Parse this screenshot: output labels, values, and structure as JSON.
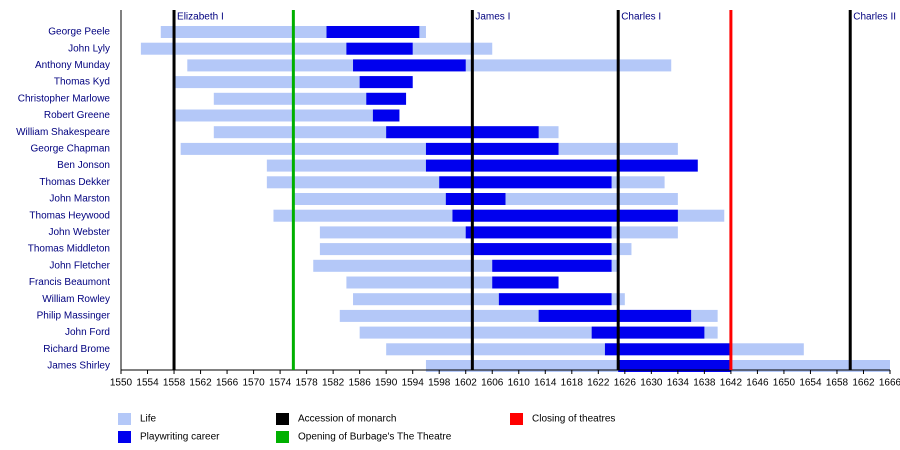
{
  "chart_data": {
    "type": "timeline",
    "categories": [
      "George Peele",
      "John Lyly",
      "Anthony Munday",
      "Thomas Kyd",
      "Christopher Marlowe",
      "Robert Greene",
      "William Shakespeare",
      "George Chapman",
      "Ben Jonson",
      "Thomas Dekker",
      "John Marston",
      "Thomas Heywood",
      "John Webster",
      "Thomas Middleton",
      "John Fletcher",
      "Francis Beaumont",
      "William Rowley",
      "Philip Massinger",
      "John Ford",
      "Richard Brome",
      "James Shirley"
    ],
    "series": [
      {
        "name": "Life",
        "color": "#b4c8f8",
        "values": [
          [
            1556,
            1596
          ],
          [
            1553,
            1606
          ],
          [
            1560,
            1633
          ],
          [
            1558,
            1594
          ],
          [
            1564,
            1593
          ],
          [
            1558,
            1592
          ],
          [
            1564,
            1616
          ],
          [
            1559,
            1634
          ],
          [
            1572,
            1637
          ],
          [
            1572,
            1632
          ],
          [
            1576,
            1634
          ],
          [
            1573,
            1641
          ],
          [
            1580,
            1634
          ],
          [
            1580,
            1627
          ],
          [
            1579,
            1625
          ],
          [
            1584,
            1616
          ],
          [
            1585,
            1626
          ],
          [
            1583,
            1640
          ],
          [
            1586,
            1640
          ],
          [
            1590,
            1653
          ],
          [
            1596,
            1666
          ]
        ]
      },
      {
        "name": "Playwriting career",
        "color": "#0000ee",
        "values": [
          [
            1581,
            1595
          ],
          [
            1584,
            1594
          ],
          [
            1585,
            1602
          ],
          [
            1586,
            1594
          ],
          [
            1587,
            1593
          ],
          [
            1588,
            1592
          ],
          [
            1590,
            1613
          ],
          [
            1596,
            1616
          ],
          [
            1596,
            1637
          ],
          [
            1598,
            1624
          ],
          [
            1599,
            1608
          ],
          [
            1600,
            1634
          ],
          [
            1602,
            1624
          ],
          [
            1603,
            1624
          ],
          [
            1606,
            1624
          ],
          [
            1606,
            1616
          ],
          [
            1607,
            1624
          ],
          [
            1613,
            1636
          ],
          [
            1621,
            1638
          ],
          [
            1623,
            1642
          ],
          [
            1625,
            1642
          ]
        ]
      }
    ],
    "markers": [
      {
        "name": "Accession of monarch",
        "color": "#000000",
        "values": [
          1558,
          1603,
          1625,
          1660
        ],
        "labels": [
          "Elizabeth I",
          "James I",
          "Charles I",
          "Charles II"
        ]
      },
      {
        "name": "Opening of Burbage's The Theatre",
        "color": "#00b000",
        "values": [
          1576
        ]
      },
      {
        "name": "Closing of theatres",
        "color": "#ff0000",
        "values": [
          1642
        ]
      }
    ],
    "xlim": [
      1550,
      1666
    ],
    "xticks": [
      1550,
      1554,
      1558,
      1562,
      1566,
      1570,
      1574,
      1578,
      1582,
      1586,
      1590,
      1594,
      1598,
      1602,
      1606,
      1610,
      1614,
      1618,
      1622,
      1626,
      1630,
      1634,
      1638,
      1642,
      1646,
      1650,
      1654,
      1658,
      1662,
      1666
    ]
  }
}
